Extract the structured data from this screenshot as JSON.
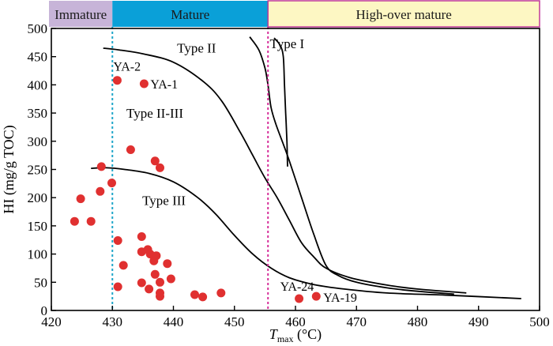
{
  "chart_data": {
    "type": "scatter",
    "xlabel": "T",
    "xlabel_sub": "max",
    "xlabel_unit": "(°C)",
    "ylabel": "HI (mg/g TOC)",
    "xlim": [
      420,
      500
    ],
    "ylim": [
      0,
      500
    ],
    "xticks": [
      420,
      430,
      440,
      450,
      460,
      470,
      480,
      490,
      500
    ],
    "yticks": [
      0,
      50,
      100,
      150,
      200,
      250,
      300,
      350,
      400,
      450,
      500
    ],
    "grid": false,
    "zones": [
      {
        "name": "Immature",
        "x": [
          420,
          430
        ],
        "color": "#c7b4d8"
      },
      {
        "name": "Mature",
        "x": [
          430,
          455.5
        ],
        "color": "#0aa0d8"
      },
      {
        "name": "High-over mature",
        "x": [
          455.5,
          500
        ],
        "color": "#fdf7c3"
      }
    ],
    "boundaries": [
      {
        "x": 430,
        "color": "#1fa6c9"
      },
      {
        "x": 455.5,
        "color": "#d6309a"
      }
    ],
    "curves": [
      {
        "name": "Type I",
        "points": [
          [
            456.5,
            483
          ],
          [
            457.5,
            470
          ],
          [
            458,
            450
          ],
          [
            458.2,
            400
          ],
          [
            458.4,
            350
          ],
          [
            458.6,
            300
          ],
          [
            458.7,
            255
          ]
        ]
      },
      {
        "name": "Type I",
        "points": [
          [
            452.5,
            485
          ],
          [
            454,
            462
          ],
          [
            455,
            430
          ],
          [
            455.5,
            400
          ],
          [
            456,
            360
          ],
          [
            456.8,
            330
          ],
          [
            458,
            295
          ],
          [
            459,
            265
          ],
          [
            461,
            200
          ],
          [
            463,
            135
          ],
          [
            465,
            80
          ],
          [
            467,
            62
          ],
          [
            470,
            50
          ],
          [
            475,
            40
          ],
          [
            480,
            34
          ],
          [
            486,
            29
          ]
        ]
      },
      {
        "name": "Type II",
        "points": [
          [
            428.5,
            465
          ],
          [
            431,
            462
          ],
          [
            435,
            455
          ],
          [
            440,
            440
          ],
          [
            445,
            405
          ],
          [
            448,
            370
          ],
          [
            451,
            315
          ],
          [
            453,
            275
          ],
          [
            455,
            235
          ],
          [
            457,
            200
          ],
          [
            459,
            160
          ],
          [
            461,
            120
          ],
          [
            463,
            95
          ],
          [
            465,
            75
          ],
          [
            469,
            58
          ],
          [
            475,
            45
          ],
          [
            480,
            38
          ],
          [
            488,
            31
          ]
        ]
      },
      {
        "name": "Type III",
        "points": [
          [
            426.5,
            252
          ],
          [
            429,
            253
          ],
          [
            432,
            250
          ],
          [
            436,
            243
          ],
          [
            440,
            228
          ],
          [
            444,
            200
          ],
          [
            447,
            170
          ],
          [
            450,
            133
          ],
          [
            453,
            100
          ],
          [
            456,
            75
          ],
          [
            459,
            58
          ],
          [
            463,
            46
          ],
          [
            468,
            38
          ],
          [
            475,
            31
          ],
          [
            485,
            27
          ],
          [
            497,
            21
          ]
        ]
      }
    ],
    "type_labels": [
      {
        "text": "Type I",
        "x": 455.8,
        "y": 465
      },
      {
        "text": "Type II",
        "x": 440.6,
        "y": 457
      },
      {
        "text": "Type II-III",
        "x": 432.3,
        "y": 342
      },
      {
        "text": "Type III",
        "x": 434.9,
        "y": 187
      }
    ],
    "series": [
      {
        "color": "#e03030",
        "points": [
          [
            430.8,
            408
          ],
          [
            435.2,
            402
          ],
          [
            433.0,
            285
          ],
          [
            437.0,
            265
          ],
          [
            437.8,
            253
          ],
          [
            428.2,
            255
          ],
          [
            429.9,
            226
          ],
          [
            428.0,
            211
          ],
          [
            424.8,
            198
          ],
          [
            423.8,
            158
          ],
          [
            426.5,
            158
          ],
          [
            434.8,
            131
          ],
          [
            430.9,
            124
          ],
          [
            435.8,
            108
          ],
          [
            434.8,
            104
          ],
          [
            436.2,
            100
          ],
          [
            437.2,
            97
          ],
          [
            436.8,
            88
          ],
          [
            439.0,
            83
          ],
          [
            431.8,
            80
          ],
          [
            437.0,
            64
          ],
          [
            439.6,
            56
          ],
          [
            437.8,
            50
          ],
          [
            434.8,
            49
          ],
          [
            430.9,
            42
          ],
          [
            436.0,
            38
          ],
          [
            437.8,
            31
          ],
          [
            447.8,
            31
          ],
          [
            443.5,
            28
          ],
          [
            437.8,
            25
          ],
          [
            444.8,
            24
          ],
          [
            460.6,
            21
          ],
          [
            463.4,
            25
          ]
        ],
        "labels": [
          {
            "text": "YA-2",
            "x": 430.8,
            "y": 408
          },
          {
            "text": "YA-1",
            "x": 435.2,
            "y": 402
          },
          {
            "text": "YA-24",
            "x": 460.6,
            "y": 21
          },
          {
            "text": "YA-19",
            "x": 463.4,
            "y": 25
          }
        ]
      }
    ]
  }
}
